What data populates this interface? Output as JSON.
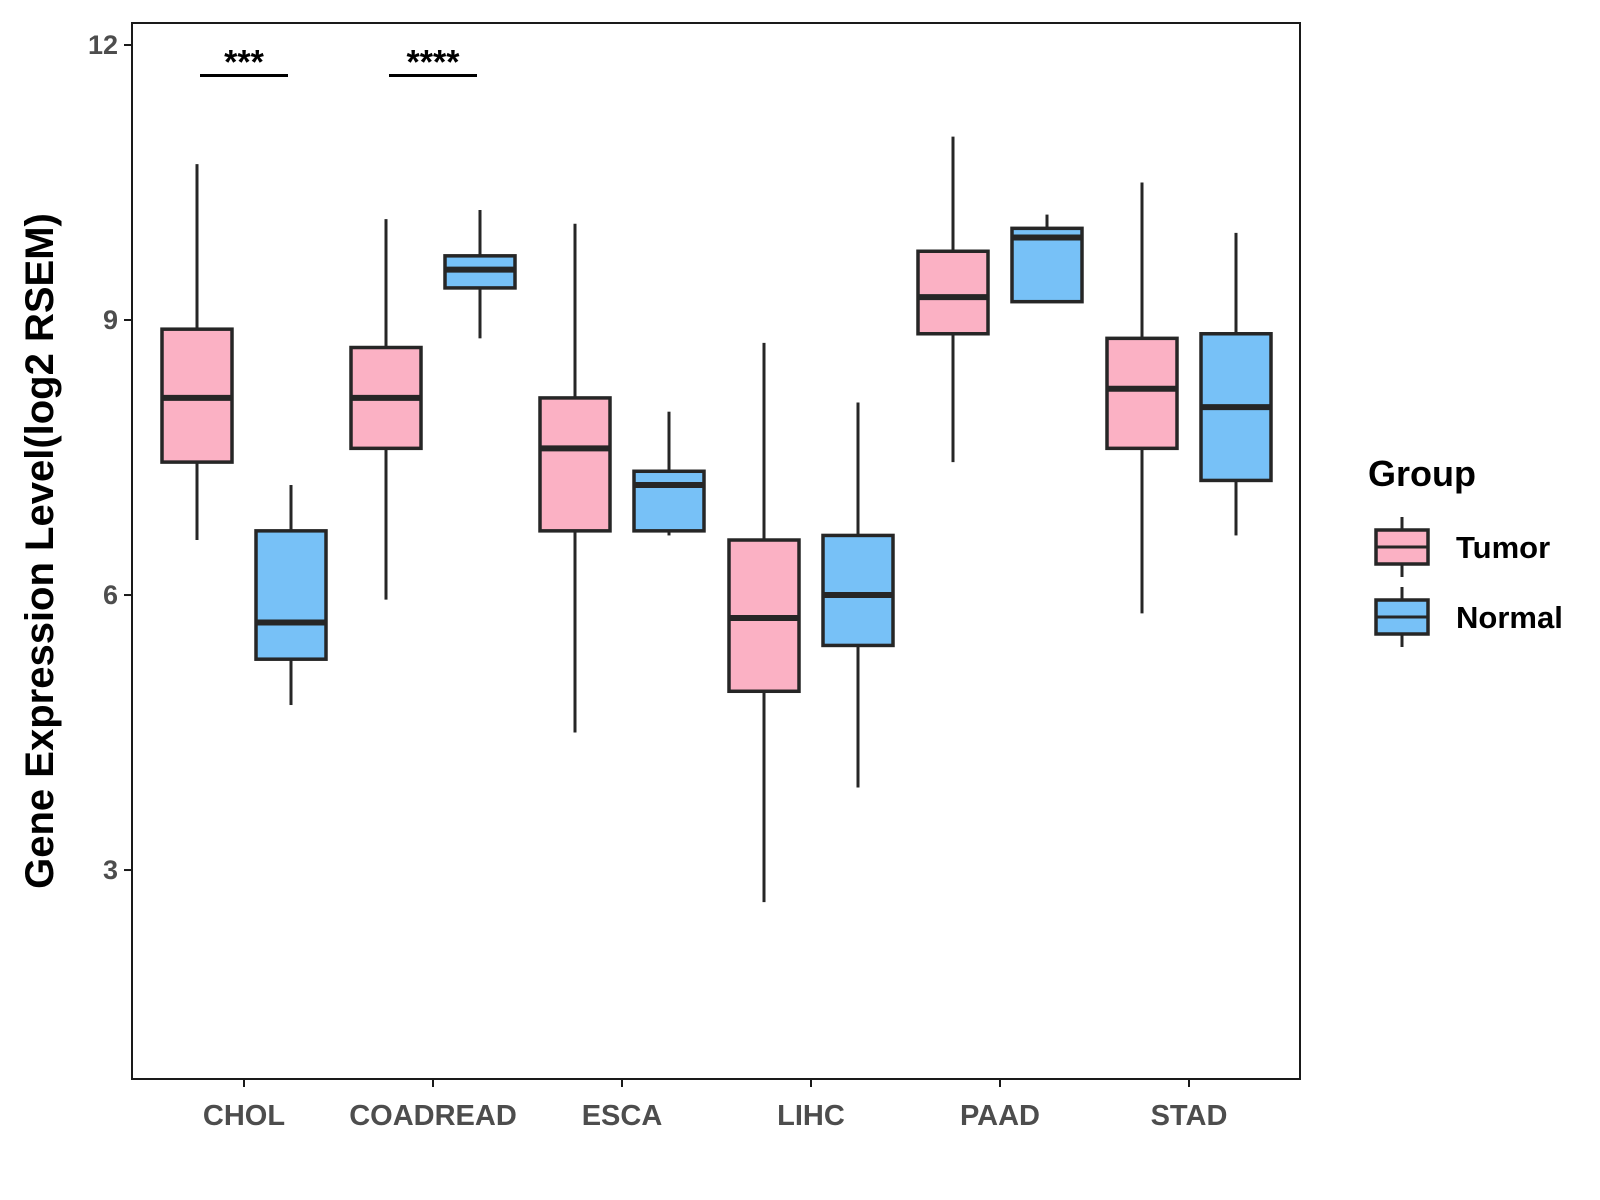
{
  "chart_data": {
    "type": "boxplot",
    "title": "",
    "xlabel": "",
    "ylabel": "Gene Expression Level(log2 RSEM)",
    "ylim": [
      0.5,
      12.3
    ],
    "yticks": [
      3,
      6,
      9,
      12
    ],
    "categories": [
      "CHOL",
      "COADREAD",
      "ESCA",
      "LIHC",
      "PAAD",
      "STAD"
    ],
    "legend": {
      "title": "Group",
      "position": "right"
    },
    "series": [
      {
        "name": "Tumor",
        "color": "#fbb1c4",
        "boxes": [
          {
            "min": 6.6,
            "q1": 7.45,
            "median": 8.15,
            "q3": 8.9,
            "max": 10.7
          },
          {
            "min": 5.95,
            "q1": 7.6,
            "median": 8.15,
            "q3": 8.7,
            "max": 10.1
          },
          {
            "min": 4.5,
            "q1": 6.7,
            "median": 7.6,
            "q3": 8.15,
            "max": 10.05
          },
          {
            "min": 2.65,
            "q1": 4.95,
            "median": 5.75,
            "q3": 6.6,
            "max": 8.75
          },
          {
            "min": 7.45,
            "q1": 8.85,
            "median": 9.25,
            "q3": 9.75,
            "max": 11.0
          },
          {
            "min": 5.8,
            "q1": 7.6,
            "median": 8.25,
            "q3": 8.8,
            "max": 10.5
          }
        ]
      },
      {
        "name": "Normal",
        "color": "#77c1f7",
        "boxes": [
          {
            "min": 4.8,
            "q1": 5.3,
            "median": 5.7,
            "q3": 6.7,
            "max": 7.2
          },
          {
            "min": 8.8,
            "q1": 9.35,
            "median": 9.55,
            "q3": 9.7,
            "max": 10.2
          },
          {
            "min": 6.65,
            "q1": 6.7,
            "median": 7.2,
            "q3": 7.35,
            "max": 8.0
          },
          {
            "min": 3.9,
            "q1": 5.45,
            "median": 6.0,
            "q3": 6.65,
            "max": 8.1
          },
          {
            "min": 9.2,
            "q1": 9.2,
            "median": 9.9,
            "q3": 10.0,
            "max": 10.15
          },
          {
            "min": 6.65,
            "q1": 7.25,
            "median": 8.05,
            "q3": 8.85,
            "max": 9.95
          }
        ]
      }
    ],
    "significance": [
      {
        "category": "CHOL",
        "label": "***",
        "y": 11.7
      },
      {
        "category": "COADREAD",
        "label": "****",
        "y": 11.7
      }
    ],
    "grid": false
  }
}
